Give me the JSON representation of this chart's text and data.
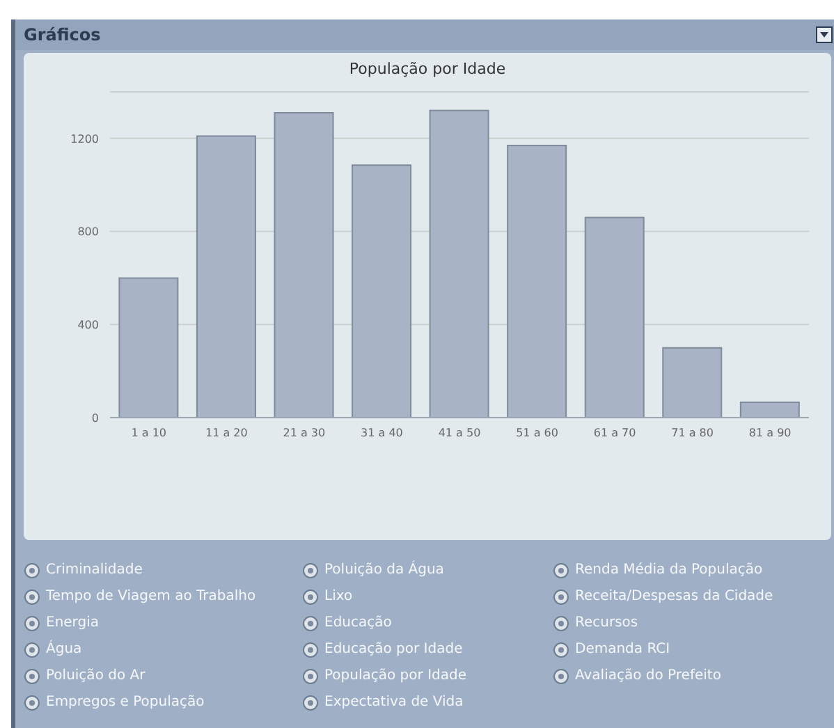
{
  "chart_data": {
    "type": "bar",
    "title": "População por Idade",
    "categories": [
      "1 a 10",
      "11 a 20",
      "21 a 30",
      "31 a 40",
      "41 a 50",
      "51 a 60",
      "61 a 70",
      "71 a 80",
      "81 a 90"
    ],
    "values": [
      600,
      1210,
      1310,
      1085,
      1320,
      1170,
      860,
      300,
      66
    ],
    "color": "#a8b4c6",
    "ylim": [
      0,
      1400
    ],
    "yticks": [
      0,
      400,
      800,
      1200
    ],
    "grid": "y",
    "legend": false,
    "annotations": [
      "Gráficos",
      "Criminalidade",
      "Tempo de Viagem ao Trabalho",
      "Energia",
      "Água",
      "Poluição do Ar",
      "Empregos e População",
      "Poluição da Água",
      "Lixo",
      "Educação",
      "Educação por Idade",
      "População por Idade",
      "Expectativa de Vida",
      "Renda Média da População",
      "Receita/Despesas da Cidade",
      "Recursos",
      "Demanda RCI",
      "Avaliação do Prefeito"
    ]
  }
}
